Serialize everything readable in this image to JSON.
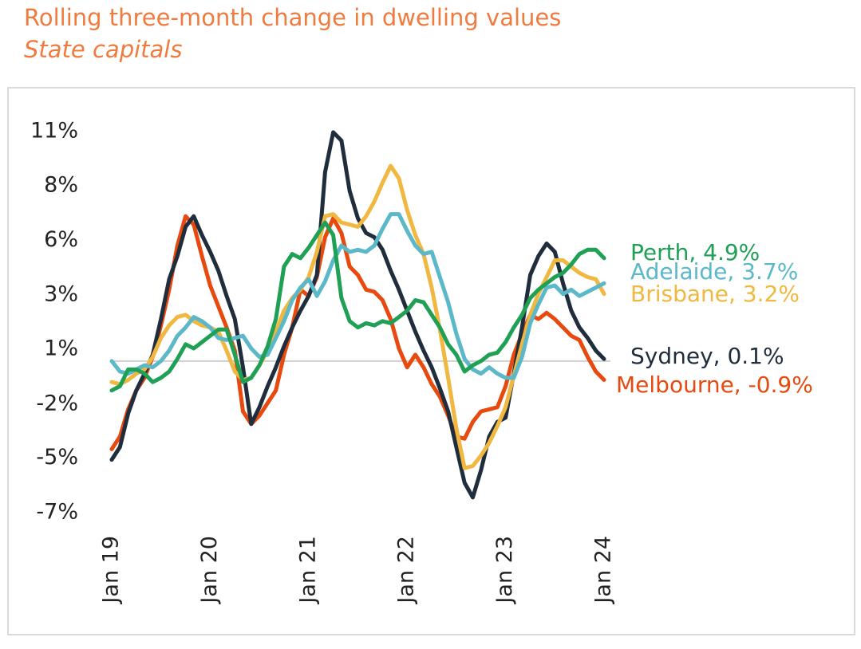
{
  "chart_data": {
    "type": "line",
    "title": "Rolling three-month change in dwelling values",
    "subtitle": "State capitals",
    "categories": [
      "Jan 19",
      null,
      null,
      null,
      null,
      null,
      null,
      null,
      null,
      null,
      null,
      null,
      "Jan 20",
      null,
      null,
      null,
      null,
      null,
      null,
      null,
      null,
      null,
      null,
      null,
      "Jan 21",
      null,
      null,
      null,
      null,
      null,
      null,
      null,
      null,
      null,
      null,
      null,
      "Jan 22",
      null,
      null,
      null,
      null,
      null,
      null,
      null,
      null,
      null,
      null,
      null,
      "Jan 23",
      null,
      null,
      null,
      null,
      null,
      null,
      null,
      null,
      null,
      null,
      null,
      "Jan 24"
    ],
    "ylim": [
      -7.3,
      11.2
    ],
    "yticks": [
      {
        "value": 10.93,
        "label": "11%"
      },
      {
        "value": 8.35,
        "label": "8%"
      },
      {
        "value": 5.74,
        "label": "6%"
      },
      {
        "value": 3.15,
        "label": "3%"
      },
      {
        "value": 0.57,
        "label": "1%"
      },
      {
        "value": -2.05,
        "label": "-2%"
      },
      {
        "value": -4.63,
        "label": "-5%"
      },
      {
        "value": -7.23,
        "label": "-7%"
      }
    ],
    "reference_line": 0,
    "grid": false,
    "series": [
      {
        "name": "Perth, 4.9%",
        "color": "#1fa055",
        "values": [
          -1.4,
          -1.2,
          -0.4,
          -0.4,
          -0.6,
          -1.0,
          -0.8,
          -0.5,
          0.1,
          0.8,
          0.6,
          0.9,
          1.2,
          1.5,
          1.5,
          0.3,
          -1.0,
          -0.8,
          -0.2,
          0.7,
          2.0,
          4.5,
          5.1,
          4.9,
          5.4,
          6.0,
          6.6,
          6.0,
          3.0,
          1.9,
          1.6,
          1.8,
          1.7,
          1.9,
          1.8,
          2.1,
          2.4,
          2.9,
          2.8,
          2.2,
          1.6,
          0.8,
          0.3,
          -0.5,
          -0.2,
          0.0,
          0.3,
          0.4,
          0.9,
          1.6,
          2.2,
          3.0,
          3.4,
          3.7,
          4.0,
          4.2,
          4.6,
          5.1,
          5.3,
          5.3,
          4.9
        ]
      },
      {
        "name": "Adelaide, 3.7%",
        "color": "#5bb8c8",
        "values": [
          0.0,
          -0.5,
          -0.6,
          -0.4,
          -0.2,
          -0.3,
          0.0,
          0.5,
          1.2,
          1.6,
          2.1,
          1.9,
          1.6,
          1.1,
          1.0,
          1.1,
          1.2,
          0.6,
          0.2,
          0.3,
          1.1,
          1.9,
          2.9,
          3.5,
          3.9,
          3.1,
          3.8,
          4.8,
          5.5,
          5.2,
          5.3,
          5.2,
          5.5,
          6.3,
          7.0,
          7.0,
          6.2,
          5.5,
          5.1,
          5.2,
          4.0,
          2.8,
          1.3,
          0.1,
          -0.4,
          -0.6,
          -0.3,
          -0.6,
          -0.8,
          -0.8,
          0.2,
          1.8,
          2.7,
          3.5,
          3.6,
          3.2,
          3.4,
          3.1,
          3.3,
          3.5,
          3.7
        ]
      },
      {
        "name": "Brisbane, 3.2%",
        "color": "#f0b840",
        "values": [
          -1.0,
          -1.1,
          -0.9,
          -0.6,
          -0.4,
          0.2,
          1.1,
          1.7,
          2.1,
          2.2,
          1.9,
          1.7,
          1.6,
          1.4,
          0.5,
          -0.5,
          -0.9,
          -0.8,
          -0.2,
          0.5,
          1.4,
          2.4,
          3.0,
          3.4,
          4.0,
          5.2,
          6.9,
          7.0,
          6.6,
          6.5,
          6.4,
          6.9,
          7.6,
          8.5,
          9.3,
          8.7,
          7.2,
          6.0,
          5.1,
          3.5,
          1.5,
          -0.8,
          -3.2,
          -5.1,
          -5.0,
          -4.5,
          -3.9,
          -3.1,
          -2.2,
          -0.7,
          0.8,
          2.2,
          3.2,
          4.0,
          4.8,
          4.8,
          4.5,
          4.2,
          4.0,
          3.9,
          3.2
        ]
      },
      {
        "name": "Sydney, 0.1%",
        "color": "#1f2d3d",
        "values": [
          -4.7,
          -4.1,
          -2.5,
          -1.4,
          -0.6,
          0.3,
          2.0,
          3.9,
          5.0,
          6.4,
          6.9,
          6.0,
          5.2,
          4.3,
          3.1,
          2.0,
          -0.3,
          -3.0,
          -2.2,
          -1.2,
          -0.3,
          0.7,
          1.6,
          2.4,
          3.1,
          4.1,
          9.0,
          10.9,
          10.5,
          8.1,
          6.8,
          6.1,
          5.9,
          5.3,
          4.3,
          3.4,
          2.4,
          1.4,
          0.5,
          -0.3,
          -1.3,
          -2.4,
          -4.1,
          -5.8,
          -6.5,
          -5.2,
          -3.6,
          -2.9,
          -2.7,
          -0.6,
          1.6,
          4.1,
          5.0,
          5.6,
          5.2,
          3.7,
          2.4,
          1.6,
          1.1,
          0.5,
          0.1
        ]
      },
      {
        "name": "Melbourne, -0.9%",
        "color": "#e8490f",
        "values": [
          -4.2,
          -3.6,
          -2.3,
          -1.4,
          -0.8,
          0.2,
          1.7,
          3.4,
          5.5,
          6.9,
          6.5,
          5.0,
          3.6,
          2.6,
          1.6,
          0.5,
          -2.4,
          -3.0,
          -2.6,
          -2.0,
          -1.4,
          0.3,
          1.6,
          3.4,
          3.1,
          4.0,
          5.9,
          6.8,
          6.1,
          4.5,
          4.1,
          3.4,
          3.3,
          2.9,
          2.0,
          0.6,
          -0.3,
          0.3,
          -0.3,
          -1.1,
          -1.7,
          -2.6,
          -3.6,
          -3.7,
          -2.9,
          -2.4,
          -2.3,
          -2.2,
          -1.2,
          0.3,
          1.3,
          2.2,
          2.0,
          2.3,
          2.0,
          1.6,
          1.2,
          1.0,
          0.2,
          -0.5,
          -0.9
        ]
      }
    ]
  }
}
